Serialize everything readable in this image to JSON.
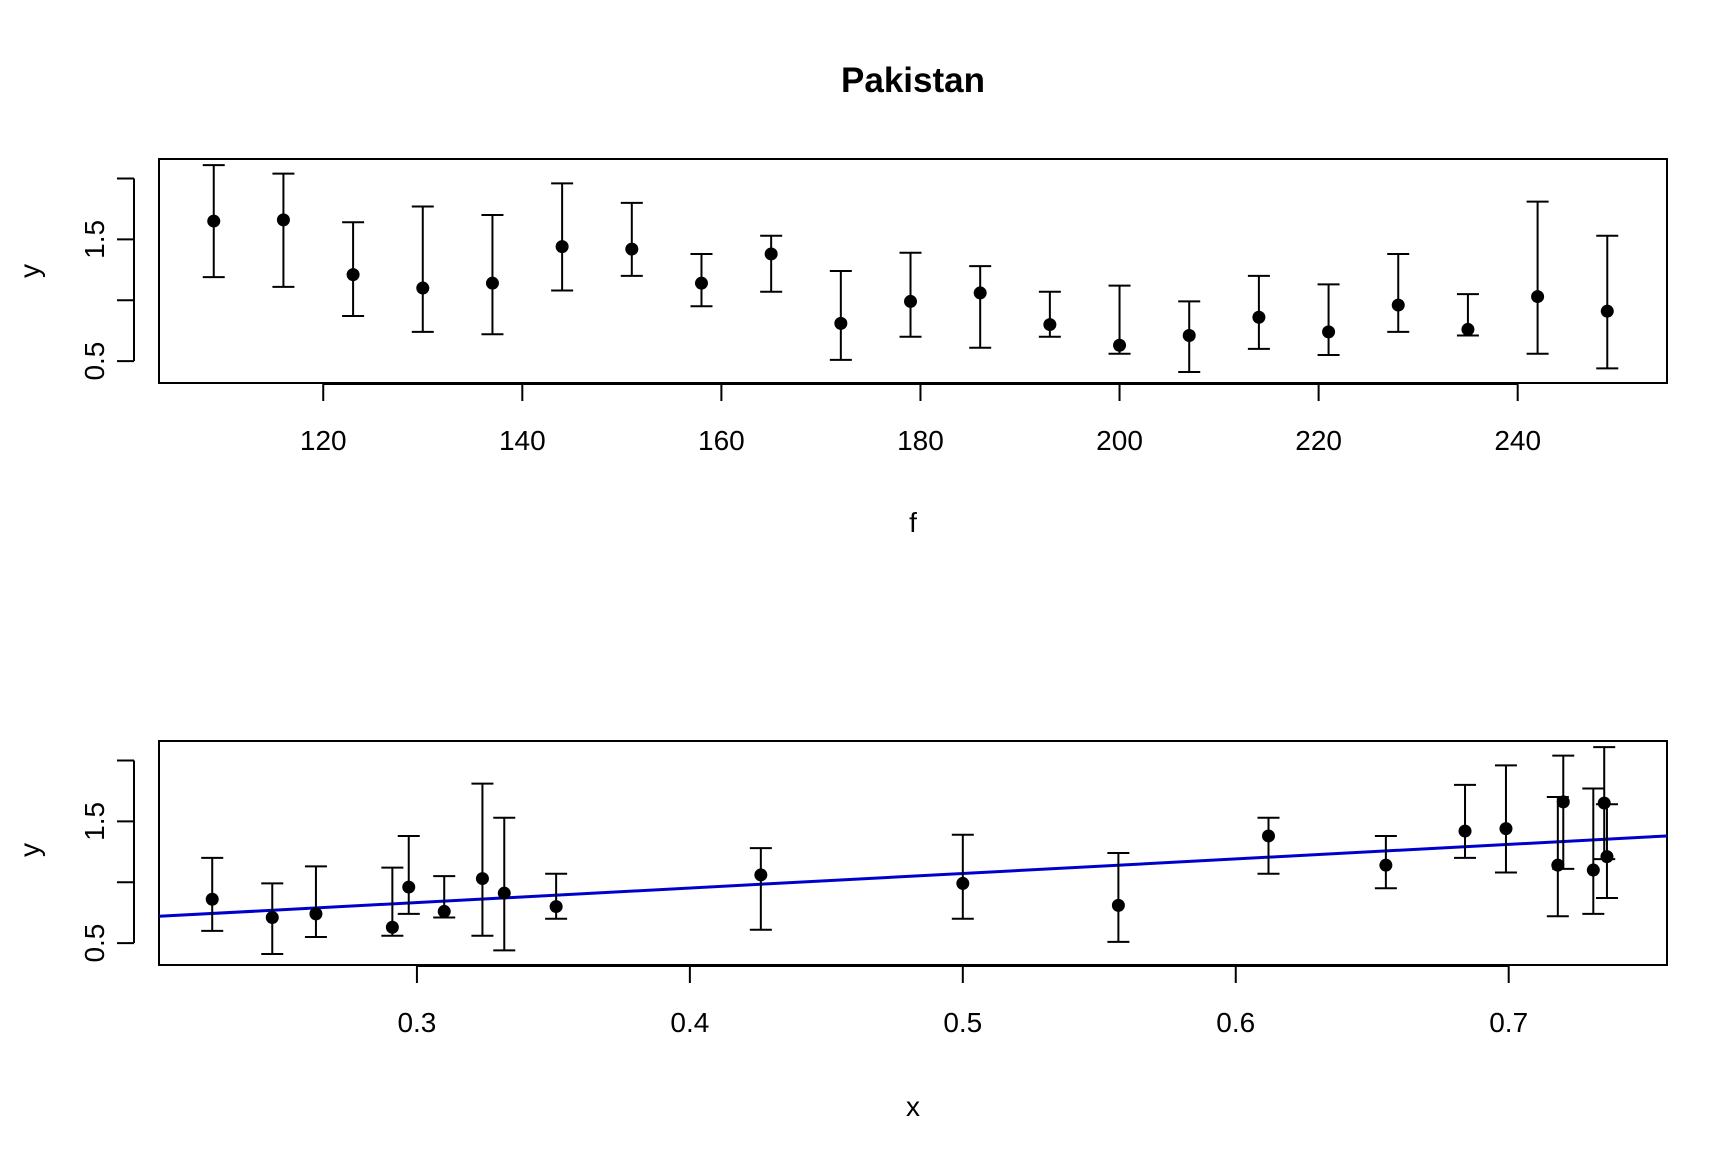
{
  "title": "Pakistan",
  "chart_data": [
    {
      "type": "scatter",
      "error_bars": true,
      "xlabel": "f",
      "ylabel": "y",
      "xlim": [
        103.5,
        255.0
      ],
      "ylim": [
        0.32,
        2.16
      ],
      "xticks": [
        120,
        140,
        160,
        180,
        200,
        220,
        240
      ],
      "xtick_labels": [
        "120",
        "140",
        "160",
        "180",
        "200",
        "220",
        "240"
      ],
      "yticks": [
        0.5,
        1.0,
        1.5,
        2.0
      ],
      "ytick_labels": [
        "0.5",
        "",
        "1.5",
        ""
      ],
      "grid": false,
      "points": [
        {
          "x": 109,
          "y": 1.65,
          "lo": 1.19,
          "hi": 2.11
        },
        {
          "x": 116,
          "y": 1.66,
          "lo": 1.11,
          "hi": 2.04
        },
        {
          "x": 123,
          "y": 1.21,
          "lo": 0.87,
          "hi": 1.64
        },
        {
          "x": 130,
          "y": 1.1,
          "lo": 0.74,
          "hi": 1.77
        },
        {
          "x": 137,
          "y": 1.14,
          "lo": 0.72,
          "hi": 1.7
        },
        {
          "x": 144,
          "y": 1.44,
          "lo": 1.08,
          "hi": 1.96
        },
        {
          "x": 151,
          "y": 1.42,
          "lo": 1.2,
          "hi": 1.8
        },
        {
          "x": 158,
          "y": 1.14,
          "lo": 0.95,
          "hi": 1.38
        },
        {
          "x": 165,
          "y": 1.38,
          "lo": 1.07,
          "hi": 1.53
        },
        {
          "x": 172,
          "y": 0.81,
          "lo": 0.51,
          "hi": 1.24
        },
        {
          "x": 179,
          "y": 0.99,
          "lo": 0.7,
          "hi": 1.39
        },
        {
          "x": 186,
          "y": 1.06,
          "lo": 0.61,
          "hi": 1.28
        },
        {
          "x": 193,
          "y": 0.8,
          "lo": 0.7,
          "hi": 1.07
        },
        {
          "x": 200,
          "y": 0.63,
          "lo": 0.56,
          "hi": 1.12
        },
        {
          "x": 207,
          "y": 0.71,
          "lo": 0.41,
          "hi": 0.99
        },
        {
          "x": 214,
          "y": 0.86,
          "lo": 0.6,
          "hi": 1.2
        },
        {
          "x": 221,
          "y": 0.74,
          "lo": 0.55,
          "hi": 1.13
        },
        {
          "x": 228,
          "y": 0.96,
          "lo": 0.74,
          "hi": 1.38
        },
        {
          "x": 235,
          "y": 0.76,
          "lo": 0.71,
          "hi": 1.05
        },
        {
          "x": 242,
          "y": 1.03,
          "lo": 0.56,
          "hi": 1.81
        },
        {
          "x": 249,
          "y": 0.91,
          "lo": 0.44,
          "hi": 1.53
        }
      ]
    },
    {
      "type": "scatter",
      "error_bars": true,
      "xlabel": "x",
      "ylabel": "y",
      "xlim": [
        0.2055,
        0.758
      ],
      "ylim": [
        0.32,
        2.16
      ],
      "xticks": [
        0.3,
        0.4,
        0.5,
        0.6,
        0.7
      ],
      "xtick_labels": [
        "0.3",
        "0.4",
        "0.5",
        "0.6",
        "0.7"
      ],
      "yticks": [
        0.5,
        1.0,
        1.5,
        2.0
      ],
      "ytick_labels": [
        "0.5",
        "",
        "1.5",
        ""
      ],
      "grid": false,
      "fit_line": {
        "x": [
          0.2055,
          0.758
        ],
        "y": [
          0.72,
          1.38
        ],
        "color": "#0000cd"
      },
      "points": [
        {
          "x": 0.225,
          "y": 0.86,
          "lo": 0.6,
          "hi": 1.2
        },
        {
          "x": 0.247,
          "y": 0.71,
          "lo": 0.41,
          "hi": 0.99
        },
        {
          "x": 0.263,
          "y": 0.74,
          "lo": 0.55,
          "hi": 1.13
        },
        {
          "x": 0.291,
          "y": 0.63,
          "lo": 0.56,
          "hi": 1.12
        },
        {
          "x": 0.297,
          "y": 0.96,
          "lo": 0.74,
          "hi": 1.38
        },
        {
          "x": 0.31,
          "y": 0.76,
          "lo": 0.71,
          "hi": 1.05
        },
        {
          "x": 0.324,
          "y": 1.03,
          "lo": 0.56,
          "hi": 1.81
        },
        {
          "x": 0.332,
          "y": 0.91,
          "lo": 0.44,
          "hi": 1.53
        },
        {
          "x": 0.351,
          "y": 0.8,
          "lo": 0.7,
          "hi": 1.07
        },
        {
          "x": 0.426,
          "y": 1.06,
          "lo": 0.61,
          "hi": 1.28
        },
        {
          "x": 0.5,
          "y": 0.99,
          "lo": 0.7,
          "hi": 1.39
        },
        {
          "x": 0.557,
          "y": 0.81,
          "lo": 0.51,
          "hi": 1.24
        },
        {
          "x": 0.612,
          "y": 1.38,
          "lo": 1.07,
          "hi": 1.53
        },
        {
          "x": 0.655,
          "y": 1.14,
          "lo": 0.95,
          "hi": 1.38
        },
        {
          "x": 0.684,
          "y": 1.42,
          "lo": 1.2,
          "hi": 1.8
        },
        {
          "x": 0.699,
          "y": 1.44,
          "lo": 1.08,
          "hi": 1.96
        },
        {
          "x": 0.718,
          "y": 1.14,
          "lo": 0.72,
          "hi": 1.7
        },
        {
          "x": 0.72,
          "y": 1.66,
          "lo": 1.11,
          "hi": 2.04
        },
        {
          "x": 0.731,
          "y": 1.1,
          "lo": 0.74,
          "hi": 1.77
        },
        {
          "x": 0.735,
          "y": 1.65,
          "lo": 1.19,
          "hi": 2.11
        },
        {
          "x": 0.736,
          "y": 1.21,
          "lo": 0.87,
          "hi": 1.64
        }
      ]
    }
  ]
}
